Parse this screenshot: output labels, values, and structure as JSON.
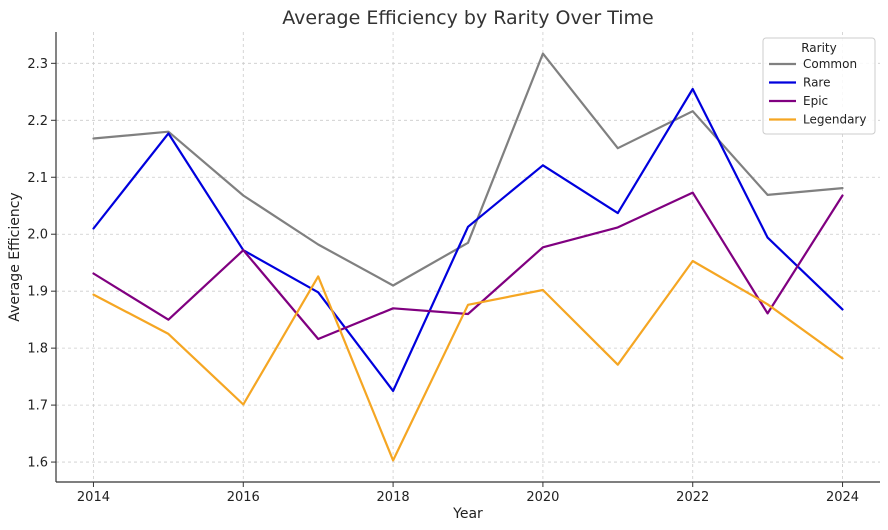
{
  "chart_data": {
    "type": "line",
    "title": "Average Efficiency by Rarity Over Time",
    "xlabel": "Year",
    "ylabel": "Average Efficiency",
    "x": [
      2014,
      2015,
      2016,
      2017,
      2018,
      2019,
      2020,
      2021,
      2022,
      2023,
      2024
    ],
    "xticks": [
      2014,
      2016,
      2018,
      2020,
      2022,
      2024
    ],
    "xlim": [
      2013.5,
      2024.5
    ],
    "ylim": [
      1.565,
      2.355
    ],
    "yticks": [
      1.6,
      1.7,
      1.8,
      1.9,
      2.0,
      2.1,
      2.2,
      2.3
    ],
    "ytick_labels": [
      "1.6",
      "1.7",
      "1.8",
      "1.9",
      "2.0",
      "2.1",
      "2.2",
      "2.3"
    ],
    "grid": true,
    "legend": {
      "title": "Rarity",
      "position": "top-right"
    },
    "series": [
      {
        "name": "Common",
        "color": "#808080",
        "values": [
          2.168,
          2.18,
          2.068,
          1.982,
          1.91,
          1.985,
          2.317,
          2.151,
          2.216,
          2.069,
          2.081
        ]
      },
      {
        "name": "Rare",
        "color": "#0000dd",
        "values": [
          2.01,
          2.177,
          1.972,
          1.898,
          1.725,
          2.013,
          2.121,
          2.037,
          2.255,
          1.994,
          1.868
        ]
      },
      {
        "name": "Epic",
        "color": "#800080",
        "values": [
          1.931,
          1.85,
          1.972,
          1.816,
          1.87,
          1.86,
          1.977,
          2.012,
          2.073,
          1.861,
          2.068
        ]
      },
      {
        "name": "Legendary",
        "color": "#f5a623",
        "values": [
          1.894,
          1.825,
          1.701,
          1.926,
          1.603,
          1.876,
          1.902,
          1.771,
          1.953,
          1.877,
          1.782
        ]
      }
    ]
  }
}
